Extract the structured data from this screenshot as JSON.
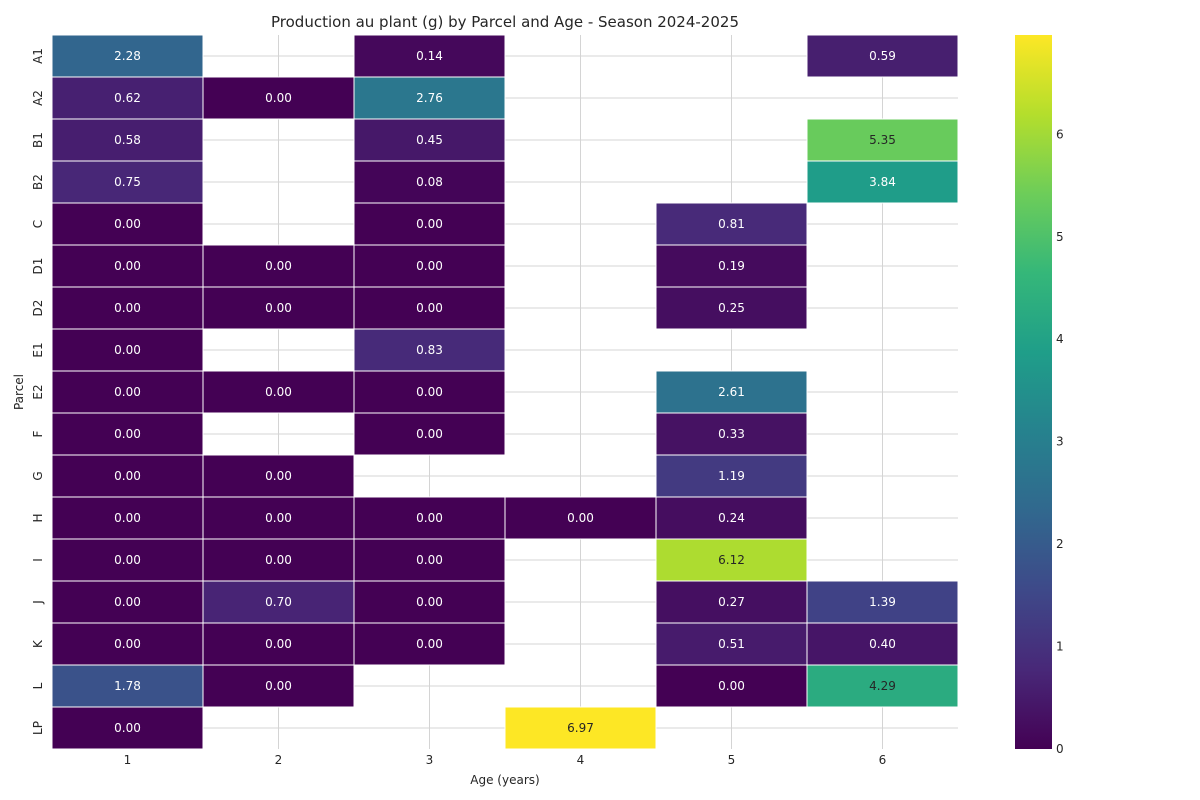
{
  "chart_data": {
    "type": "heatmap",
    "title": "Production au plant (g) by Parcel and Age - Season 2024-2025",
    "xlabel": "Age (years)",
    "ylabel": "Parcel",
    "x_categories": [
      "1",
      "2",
      "3",
      "4",
      "5",
      "6"
    ],
    "y_categories": [
      "A1",
      "A2",
      "B1",
      "B2",
      "C",
      "D1",
      "D2",
      "E1",
      "E2",
      "F",
      "G",
      "H",
      "I",
      "J",
      "K",
      "L",
      "LP"
    ],
    "values": [
      [
        2.28,
        null,
        0.14,
        null,
        null,
        0.59
      ],
      [
        0.62,
        0.0,
        2.76,
        null,
        null,
        null
      ],
      [
        0.58,
        null,
        0.45,
        null,
        null,
        5.35
      ],
      [
        0.75,
        null,
        0.08,
        null,
        null,
        3.84
      ],
      [
        0.0,
        null,
        0.0,
        null,
        0.81,
        null
      ],
      [
        0.0,
        0.0,
        0.0,
        null,
        0.19,
        null
      ],
      [
        0.0,
        0.0,
        0.0,
        null,
        0.25,
        null
      ],
      [
        0.0,
        null,
        0.83,
        null,
        null,
        null
      ],
      [
        0.0,
        0.0,
        0.0,
        null,
        2.61,
        null
      ],
      [
        0.0,
        null,
        0.0,
        null,
        0.33,
        null
      ],
      [
        0.0,
        0.0,
        null,
        null,
        1.19,
        null
      ],
      [
        0.0,
        0.0,
        0.0,
        0.0,
        0.24,
        null
      ],
      [
        0.0,
        0.0,
        0.0,
        null,
        6.12,
        null
      ],
      [
        0.0,
        0.7,
        0.0,
        null,
        0.27,
        1.39
      ],
      [
        0.0,
        0.0,
        0.0,
        null,
        0.51,
        0.4
      ],
      [
        1.78,
        0.0,
        null,
        null,
        0.0,
        4.29
      ],
      [
        0.0,
        null,
        null,
        6.97,
        null,
        null
      ]
    ],
    "value_range": [
      0,
      6.97
    ],
    "colorscale": "viridis",
    "colorbar_ticks": [
      0,
      1,
      2,
      3,
      4,
      5,
      6
    ],
    "grid": true
  }
}
